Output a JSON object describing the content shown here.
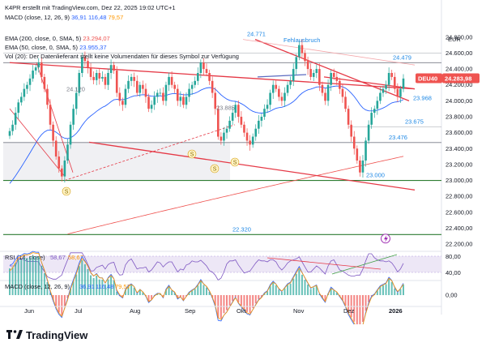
{
  "header": {
    "credit": "K4PR erstellt mit TradingView.com, Dez 22, 2025 19:02 UTC+1",
    "top_indicator": {
      "label": "MACD (close, 12, 26, 9)",
      "v1": "36,91",
      "v2": "116,48",
      "v3": "79,57"
    },
    "ema200": {
      "label": "EMA (200, close, 0, SMA, 5)",
      "value": "23.294,07"
    },
    "ema50": {
      "label": "EMA (50, close, 0, SMA, 5)",
      "value": "23.955,37"
    },
    "vol": {
      "label": "Vol (20): Der Datenlieferant stellt keine Volumendaten für dieses Symbol zur Verfügung"
    },
    "currency": "EUR"
  },
  "colors": {
    "up": "#26a69a",
    "down": "#ef5350",
    "trend": "#e53946",
    "ema200": "#ef5350",
    "ema50": "#2962ff",
    "hline": "#2e7d32",
    "level": "#1e88e5",
    "rsi": "#7e57c2",
    "price_tag": "#ef5350",
    "gap": "#5c6bc0"
  },
  "chart_data": {
    "type": "candlestick",
    "symbol_tag": "DEU40",
    "last_price": "24.283,98",
    "y_axis_ticks": [
      "24.800,00",
      "24.600,00",
      "24.400,00",
      "24.200,00",
      "24.000,00",
      "23.800,00",
      "23.600,00",
      "23.400,00",
      "23.200,00",
      "23.000,00",
      "22.800,00",
      "22.600,00",
      "22.400,00",
      "22.200,00"
    ],
    "ylim": [
      22150,
      24900
    ],
    "x_axis_labels": [
      "Jun",
      "Jul",
      "Aug",
      "Sep",
      "Okt",
      "Nov",
      "Dez",
      "2026"
    ],
    "level_labels": [
      {
        "text": "24.771",
        "price": 24771
      },
      {
        "text": "24.479",
        "price": 24479
      },
      {
        "text": "23.968",
        "price": 23968
      },
      {
        "text": "23.675",
        "price": 23675
      },
      {
        "text": "23.476",
        "price": 23476
      },
      {
        "text": "23.000",
        "price": 23000
      },
      {
        "text": "22.320",
        "price": 22320
      },
      {
        "text": "24.120",
        "price": 24120
      },
      {
        "text": "23.885",
        "price": 23885
      }
    ],
    "horizontal_lines": [
      24479,
      23476,
      23000,
      22320
    ],
    "annotation": "Fehlausbruch",
    "s_markers": [
      "S",
      "S",
      "S",
      "S"
    ],
    "closes": [
      23620,
      23700,
      23850,
      23980,
      24050,
      24150,
      24200,
      24280,
      24380,
      24420,
      24480,
      24300,
      24150,
      23950,
      23700,
      23500,
      23300,
      23150,
      23050,
      23250,
      23450,
      23700,
      23900,
      24100,
      24350,
      24550,
      24500,
      24420,
      24300,
      24260,
      24350,
      24280,
      24300,
      24200,
      24350,
      24450,
      24380,
      24100,
      24000,
      23950,
      24150,
      24250,
      24300,
      24250,
      24100,
      24200,
      24150,
      24050,
      23900,
      23950,
      24050,
      24100,
      24100,
      24000,
      24200,
      24300,
      24200,
      24150,
      24000,
      24050,
      23950,
      24050,
      24150,
      24200,
      24250,
      24350,
      24480,
      24400,
      24350,
      24250,
      24100,
      23900,
      23550,
      23500,
      23600,
      23650,
      23750,
      23850,
      23950,
      23800,
      23700,
      23600,
      23500,
      23450,
      23550,
      23650,
      23750,
      23800,
      23900,
      23950,
      24100,
      24200,
      24150,
      24050,
      24000,
      24100,
      24200,
      24250,
      24400,
      24550,
      24700,
      24600,
      24500,
      24400,
      24300,
      24350,
      24400,
      24200,
      24100,
      24000,
      24200,
      24350,
      24300,
      24250,
      24150,
      24050,
      23900,
      23700,
      23550,
      23400,
      23250,
      23100,
      23250,
      23500,
      23700,
      23850,
      23900,
      24000,
      24100,
      24150,
      24200,
      24350,
      24300,
      24150,
      24050,
      24150,
      24280
    ],
    "rsi": {
      "label": "RSI (14, close)",
      "v1": "58,67",
      "v2": "58,67",
      "ticks": [
        "80,00",
        "40,00"
      ]
    },
    "macd": {
      "label": "MACD (close, 12, 26, 9)",
      "v1": "36,91",
      "v2": "116,48",
      "v3": "79,57",
      "ticks": [
        "0,00"
      ]
    }
  }
}
